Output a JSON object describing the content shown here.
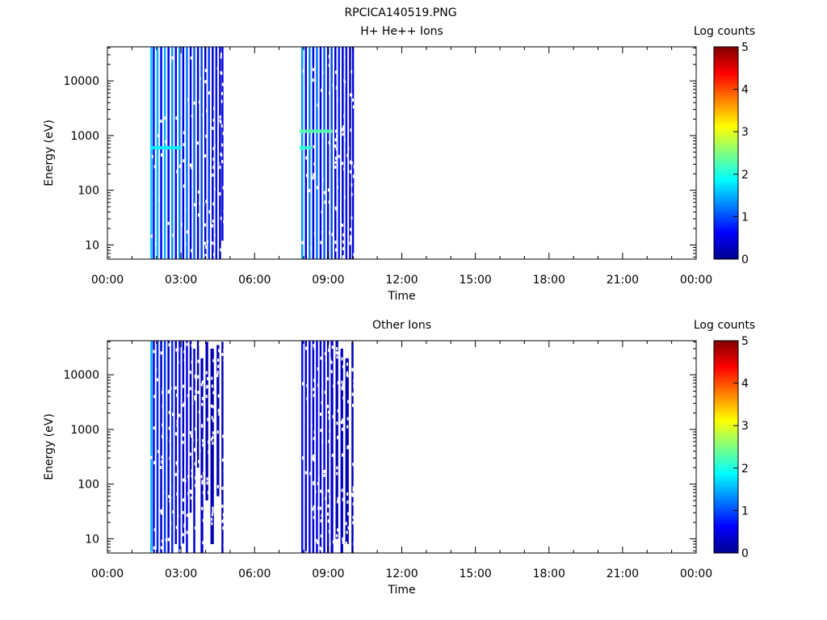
{
  "figure_title": "RPCICA140519.PNG",
  "colormap_stops": [
    "#00008f",
    "#0000ff",
    "#0080ff",
    "#00ffff",
    "#80ff80",
    "#ffff00",
    "#ff8000",
    "#ff0000",
    "#800000"
  ],
  "chart_data": [
    {
      "type": "heatmap",
      "title": "H+ He++ Ions",
      "xlabel": "Time",
      "ylabel": "Energy (eV)",
      "y_scale": "log",
      "x_unit": "hours",
      "xlim": [
        0,
        24
      ],
      "ylim": [
        5.5,
        42000
      ],
      "x_tick_labels": [
        "00:00",
        "03:00",
        "06:00",
        "09:00",
        "12:00",
        "15:00",
        "18:00",
        "21:00",
        "00:00"
      ],
      "x_tick_values": [
        0,
        3,
        6,
        9,
        12,
        15,
        18,
        21,
        24
      ],
      "y_tick_labels": [
        "10",
        "100",
        "1000",
        "10000"
      ],
      "y_tick_values": [
        10,
        100,
        1000,
        10000
      ],
      "colorbar": {
        "label": "Log counts",
        "range": [
          0,
          5
        ],
        "tick_labels": [
          "0",
          "1",
          "2",
          "3",
          "4",
          "5"
        ],
        "tick_values": [
          0,
          1,
          2,
          3,
          4,
          5
        ]
      },
      "data_intervals": [
        {
          "start": "01:45",
          "end": "04:45"
        },
        {
          "start": "07:50",
          "end": "10:05"
        }
      ],
      "features": [
        {
          "time": "07:50-09:10",
          "energy_eV": 1200,
          "log_counts": 2.3
        },
        {
          "time": "07:50-08:20",
          "energy_eV": 600,
          "log_counts": 2.1
        },
        {
          "time": "01:45-03:00",
          "energy_eV": 600,
          "log_counts": 1.8
        }
      ],
      "columns": [
        {
          "t": 1.75,
          "e0": 5.5,
          "e1": 42000,
          "v": 1.6
        },
        {
          "t": 1.85,
          "e0": 5.5,
          "e1": 42000,
          "v": 0.7
        },
        {
          "t": 2.0,
          "e0": 5.5,
          "e1": 42000,
          "v": 1.5
        },
        {
          "t": 2.15,
          "e0": 5.5,
          "e1": 42000,
          "v": 0.6
        },
        {
          "t": 2.3,
          "e0": 5.5,
          "e1": 42000,
          "v": 1.5
        },
        {
          "t": 2.45,
          "e0": 5.5,
          "e1": 42000,
          "v": 0.6
        },
        {
          "t": 2.6,
          "e0": 5.5,
          "e1": 42000,
          "v": 1.4
        },
        {
          "t": 2.75,
          "e0": 5.5,
          "e1": 42000,
          "v": 0.6
        },
        {
          "t": 2.9,
          "e0": 5.5,
          "e1": 42000,
          "v": 1.3
        },
        {
          "t": 3.05,
          "e0": 5.5,
          "e1": 42000,
          "v": 0.5
        },
        {
          "t": 3.2,
          "e0": 5.5,
          "e1": 42000,
          "v": 1.2
        },
        {
          "t": 3.35,
          "e0": 5.5,
          "e1": 42000,
          "v": 0.5
        },
        {
          "t": 3.5,
          "e0": 5.5,
          "e1": 42000,
          "v": 1.1
        },
        {
          "t": 3.65,
          "e0": 5.5,
          "e1": 42000,
          "v": 0.4
        },
        {
          "t": 3.8,
          "e0": 5.5,
          "e1": 42000,
          "v": 1.0
        },
        {
          "t": 3.95,
          "e0": 5.5,
          "e1": 42000,
          "v": 0.3
        },
        {
          "t": 4.1,
          "e0": 5.5,
          "e1": 42000,
          "v": 0.9
        },
        {
          "t": 4.25,
          "e0": 5.5,
          "e1": 42000,
          "v": 0.3
        },
        {
          "t": 4.4,
          "e0": 5.5,
          "e1": 42000,
          "v": 0.7
        },
        {
          "t": 4.55,
          "e0": 5.5,
          "e1": 42000,
          "v": 0.3
        },
        {
          "t": 4.65,
          "e0": 12,
          "e1": 42000,
          "v": 0.5
        },
        {
          "t": 7.9,
          "e0": 5.5,
          "e1": 42000,
          "v": 1.4
        },
        {
          "t": 8.05,
          "e0": 5.5,
          "e1": 42000,
          "v": 0.6
        },
        {
          "t": 8.2,
          "e0": 5.5,
          "e1": 42000,
          "v": 1.3
        },
        {
          "t": 8.35,
          "e0": 5.5,
          "e1": 42000,
          "v": 0.5
        },
        {
          "t": 8.5,
          "e0": 5.5,
          "e1": 42000,
          "v": 1.2
        },
        {
          "t": 8.65,
          "e0": 5.5,
          "e1": 42000,
          "v": 0.5
        },
        {
          "t": 8.8,
          "e0": 5.5,
          "e1": 42000,
          "v": 1.1
        },
        {
          "t": 8.95,
          "e0": 5.5,
          "e1": 42000,
          "v": 0.4
        },
        {
          "t": 9.1,
          "e0": 5.5,
          "e1": 42000,
          "v": 1.0
        },
        {
          "t": 9.25,
          "e0": 5.5,
          "e1": 42000,
          "v": 0.3
        },
        {
          "t": 9.4,
          "e0": 5.5,
          "e1": 42000,
          "v": 0.8
        },
        {
          "t": 9.55,
          "e0": 5.5,
          "e1": 42000,
          "v": 0.3
        },
        {
          "t": 9.7,
          "e0": 5.5,
          "e1": 42000,
          "v": 0.7
        },
        {
          "t": 9.85,
          "e0": 5.5,
          "e1": 42000,
          "v": 0.3
        },
        {
          "t": 9.97,
          "e0": 5.5,
          "e1": 42000,
          "v": 0.5
        }
      ]
    },
    {
      "type": "heatmap",
      "title": "Other Ions",
      "xlabel": "Time",
      "ylabel": "Energy (eV)",
      "y_scale": "log",
      "x_unit": "hours",
      "xlim": [
        0,
        24
      ],
      "ylim": [
        5.5,
        42000
      ],
      "x_tick_labels": [
        "00:00",
        "03:00",
        "06:00",
        "09:00",
        "12:00",
        "15:00",
        "18:00",
        "21:00",
        "00:00"
      ],
      "x_tick_values": [
        0,
        3,
        6,
        9,
        12,
        15,
        18,
        21,
        24
      ],
      "y_tick_labels": [
        "10",
        "100",
        "1000",
        "10000"
      ],
      "y_tick_values": [
        10,
        100,
        1000,
        10000
      ],
      "colorbar": {
        "label": "Log counts",
        "range": [
          0,
          5
        ],
        "tick_labels": [
          "0",
          "1",
          "2",
          "3",
          "4",
          "5"
        ],
        "tick_values": [
          0,
          1,
          2,
          3,
          4,
          5
        ]
      },
      "data_intervals": [
        {
          "start": "01:45",
          "end": "04:45"
        },
        {
          "start": "07:50",
          "end": "10:05"
        }
      ],
      "columns": [
        {
          "t": 1.75,
          "e0": 5.5,
          "e1": 42000,
          "v": 1.5
        },
        {
          "t": 1.85,
          "e0": 5.5,
          "e1": 42000,
          "v": 0.5
        },
        {
          "t": 2.0,
          "e0": 5.5,
          "e1": 42000,
          "v": 0.8
        },
        {
          "t": 2.15,
          "e0": 5.5,
          "e1": 42000,
          "v": 0.3
        },
        {
          "t": 2.3,
          "e0": 5.5,
          "e1": 42000,
          "v": 0.9
        },
        {
          "t": 2.45,
          "e0": 5.5,
          "e1": 42000,
          "v": 0.3
        },
        {
          "t": 2.6,
          "e0": 5.5,
          "e1": 42000,
          "v": 0.8
        },
        {
          "t": 2.75,
          "e0": 8,
          "e1": 42000,
          "v": 0.3
        },
        {
          "t": 2.9,
          "e0": 5.5,
          "e1": 42000,
          "v": 0.7
        },
        {
          "t": 3.05,
          "e0": 8,
          "e1": 42000,
          "v": 0.3
        },
        {
          "t": 3.2,
          "e0": 5.5,
          "e1": 42000,
          "v": 0.5
        },
        {
          "t": 3.35,
          "e0": 30,
          "e1": 42000,
          "v": 0.2
        },
        {
          "t": 3.5,
          "e0": 5.5,
          "e1": 30000,
          "v": 0.3
        },
        {
          "t": 3.65,
          "e0": 200,
          "e1": 42000,
          "v": 0.2
        },
        {
          "t": 3.8,
          "e0": 5.5,
          "e1": 20000,
          "v": 0.3
        },
        {
          "t": 4.0,
          "e0": 50,
          "e1": 40000,
          "v": 0.2
        },
        {
          "t": 4.2,
          "e0": 8,
          "e1": 30000,
          "v": 0.2
        },
        {
          "t": 4.45,
          "e0": 60,
          "e1": 35000,
          "v": 0.2
        },
        {
          "t": 4.65,
          "e0": 5.5,
          "e1": 40000,
          "v": 0.2
        },
        {
          "t": 7.9,
          "e0": 5.5,
          "e1": 42000,
          "v": 0.7
        },
        {
          "t": 8.05,
          "e0": 5.5,
          "e1": 42000,
          "v": 0.4
        },
        {
          "t": 8.2,
          "e0": 5.5,
          "e1": 42000,
          "v": 0.6
        },
        {
          "t": 8.35,
          "e0": 5.5,
          "e1": 42000,
          "v": 0.3
        },
        {
          "t": 8.5,
          "e0": 5.5,
          "e1": 42000,
          "v": 0.5
        },
        {
          "t": 8.65,
          "e0": 5.5,
          "e1": 42000,
          "v": 0.3
        },
        {
          "t": 8.8,
          "e0": 5.5,
          "e1": 42000,
          "v": 0.5
        },
        {
          "t": 8.95,
          "e0": 5.5,
          "e1": 42000,
          "v": 0.3
        },
        {
          "t": 9.1,
          "e0": 5.5,
          "e1": 42000,
          "v": 0.4
        },
        {
          "t": 9.3,
          "e0": 10,
          "e1": 42000,
          "v": 0.2
        },
        {
          "t": 9.5,
          "e0": 5.5,
          "e1": 30000,
          "v": 0.3
        },
        {
          "t": 9.7,
          "e0": 8,
          "e1": 20000,
          "v": 0.2
        },
        {
          "t": 9.95,
          "e0": 5.5,
          "e1": 40000,
          "v": 0.2
        }
      ]
    }
  ]
}
